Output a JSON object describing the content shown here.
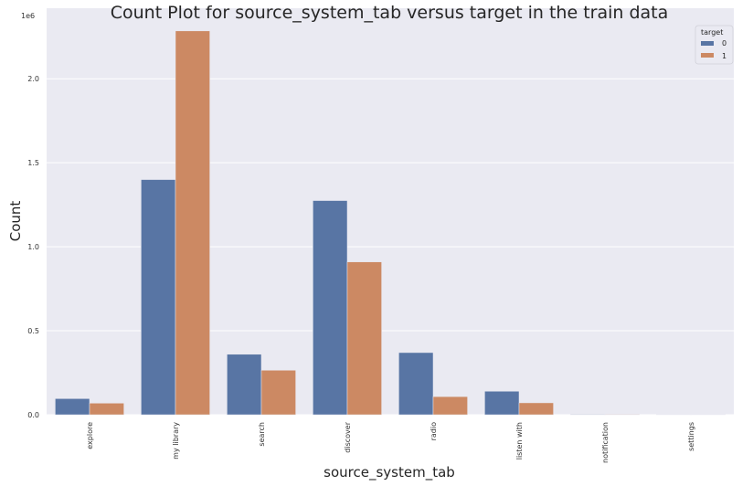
{
  "chart_data": {
    "type": "bar",
    "title": "Count Plot for source_system_tab versus target in the train data",
    "xlabel": "source_system_tab",
    "ylabel": "Count",
    "offset_text": "1e6",
    "categories": [
      "explore",
      "my library",
      "search",
      "discover",
      "radio",
      "listen with",
      "notification",
      "settings"
    ],
    "series": [
      {
        "name": "0",
        "color": "#5875a4",
        "values": [
          96000,
          1400000,
          360000,
          1275000,
          370000,
          140000,
          3000,
          1500
        ]
      },
      {
        "name": "1",
        "color": "#cc8963",
        "values": [
          69000,
          2285000,
          265000,
          910000,
          108000,
          71000,
          3000,
          1500
        ]
      }
    ],
    "ylim": [
      0,
      2420000
    ],
    "yticks": [
      {
        "value": 0,
        "label": "0.0"
      },
      {
        "value": 500000,
        "label": "0.5"
      },
      {
        "value": 1000000,
        "label": "1.0"
      },
      {
        "value": 1500000,
        "label": "1.5"
      },
      {
        "value": 2000000,
        "label": "2.0"
      }
    ],
    "legend": {
      "title": "target",
      "position": "top-right"
    },
    "grid": true,
    "background": "#eaeaf2"
  }
}
